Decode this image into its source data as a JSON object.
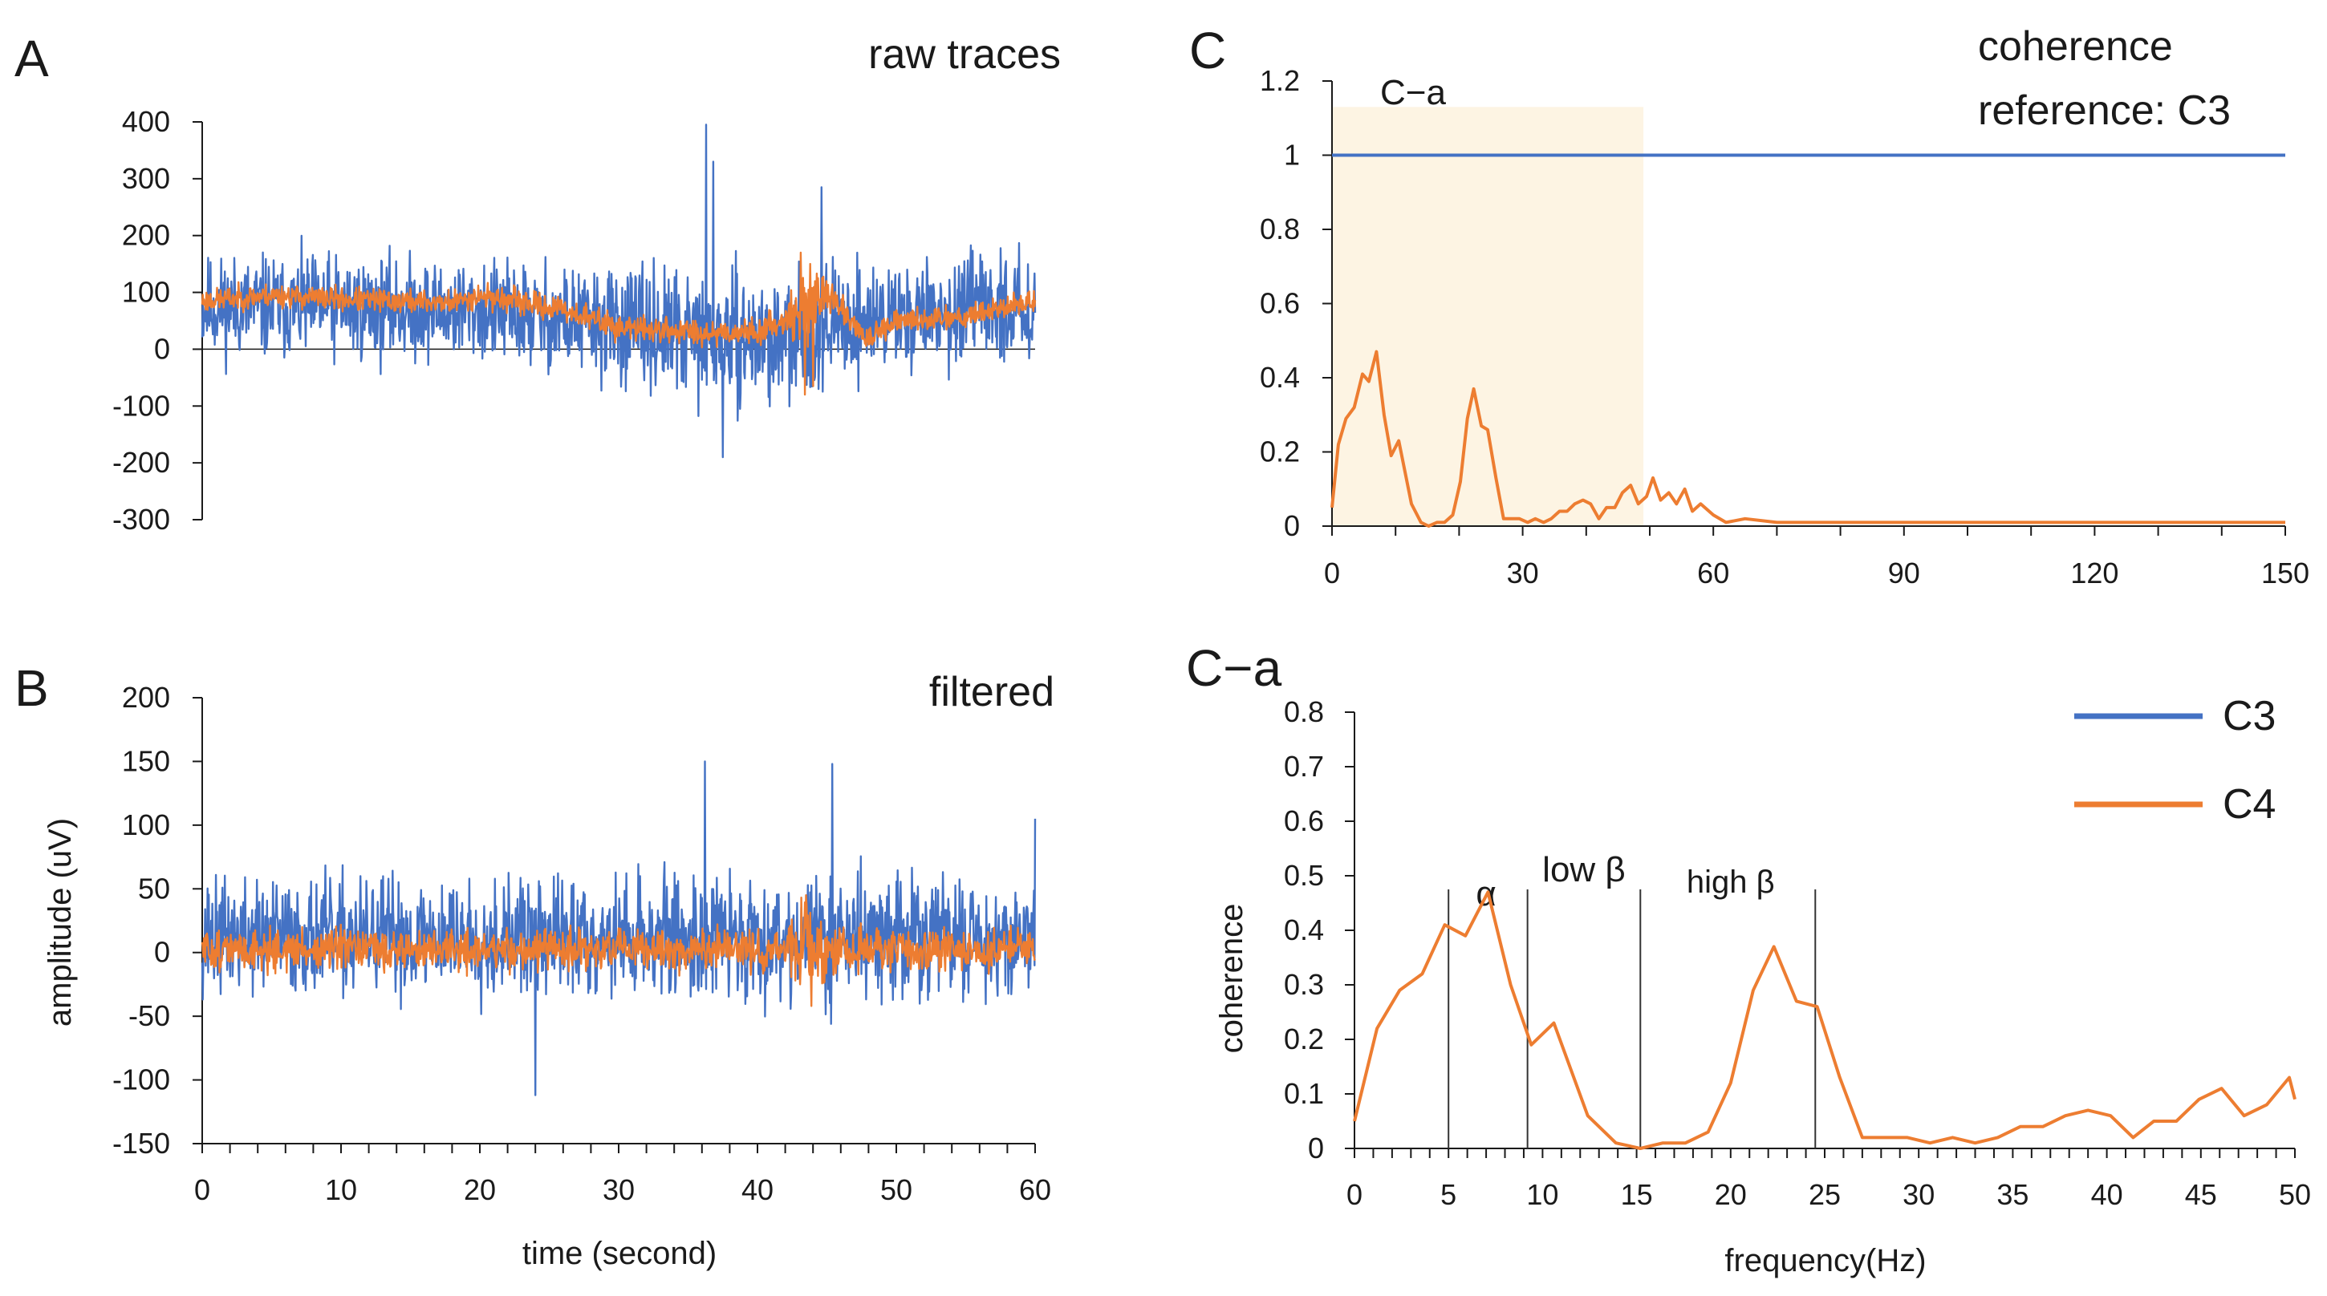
{
  "colors": {
    "c3": "#4472C4",
    "c4": "#ED7D31",
    "shade": "#FDF4E3",
    "axis": "#1a1a1a",
    "band_line": "#333333"
  },
  "legend": {
    "c3": "C3",
    "c4": "C4"
  },
  "chart_data": [
    {
      "id": "A",
      "panel_label": "A",
      "type": "line",
      "title": "raw traces",
      "xlabel": "",
      "ylabel": "",
      "xlim": [
        0,
        60
      ],
      "ylim": [
        -300,
        400
      ],
      "xticks": [],
      "yticks": [
        -300,
        -200,
        -100,
        0,
        100,
        200,
        300,
        400
      ],
      "series": [
        {
          "name": "C3",
          "color": "#4472C4",
          "style": "noise",
          "x_range": [
            0,
            60
          ],
          "samples": 1400,
          "seed": 11,
          "baseline": [
            [
              0,
              75
            ],
            [
              10,
              72
            ],
            [
              20,
              68
            ],
            [
              30,
              40
            ],
            [
              36,
              20
            ],
            [
              42,
              15
            ],
            [
              45,
              40
            ],
            [
              50,
              60
            ],
            [
              60,
              75
            ]
          ],
          "amplitude": [
            [
              0,
              95
            ],
            [
              10,
              100
            ],
            [
              20,
              95
            ],
            [
              30,
              110
            ],
            [
              36,
              120
            ],
            [
              42,
              115
            ],
            [
              50,
              100
            ],
            [
              60,
              95
            ]
          ],
          "spikes": [
            [
              36.3,
              395
            ],
            [
              36.8,
              330
            ],
            [
              37.5,
              -190
            ],
            [
              44.6,
              285
            ]
          ]
        },
        {
          "name": "C4",
          "color": "#ED7D31",
          "style": "noise",
          "x_range": [
            0,
            60
          ],
          "samples": 1400,
          "seed": 23,
          "baseline": [
            [
              0,
              85
            ],
            [
              5,
              95
            ],
            [
              10,
              88
            ],
            [
              18,
              82
            ],
            [
              20,
              95
            ],
            [
              26,
              70
            ],
            [
              30,
              38
            ],
            [
              36,
              30
            ],
            [
              40,
              30
            ],
            [
              42.5,
              60
            ],
            [
              43,
              60
            ],
            [
              45,
              100
            ],
            [
              48,
              15
            ],
            [
              50,
              48
            ],
            [
              55,
              60
            ],
            [
              60,
              85
            ]
          ],
          "amplitude": [
            [
              0,
              22
            ],
            [
              42,
              25
            ],
            [
              43,
              70
            ],
            [
              44,
              60
            ],
            [
              45,
              25
            ],
            [
              60,
              22
            ]
          ],
          "spikes": [
            [
              43.1,
              170
            ],
            [
              43.4,
              -80
            ],
            [
              43.8,
              150
            ],
            [
              44.0,
              -65
            ]
          ]
        }
      ]
    },
    {
      "id": "B",
      "panel_label": "B",
      "type": "line",
      "title": "filtered",
      "xlabel": "time (second)",
      "ylabel": "amplitude (uV)",
      "xlim": [
        0,
        60
      ],
      "ylim": [
        -150,
        200
      ],
      "xticks": [
        0,
        10,
        20,
        30,
        40,
        50,
        60
      ],
      "yticks": [
        -150,
        -100,
        -50,
        0,
        50,
        100,
        150,
        200
      ],
      "series": [
        {
          "name": "C3",
          "color": "#4472C4",
          "style": "noise",
          "x_range": [
            0,
            60
          ],
          "samples": 1400,
          "seed": 37,
          "baseline": [
            [
              0,
              12
            ],
            [
              60,
              12
            ]
          ],
          "amplitude": [
            [
              0,
              48
            ],
            [
              30,
              50
            ],
            [
              45,
              55
            ],
            [
              60,
              50
            ]
          ],
          "spikes": [
            [
              36.2,
              150
            ],
            [
              45.4,
              148
            ],
            [
              24.0,
              -112
            ],
            [
              60.0,
              105
            ]
          ]
        },
        {
          "name": "C4",
          "color": "#ED7D31",
          "style": "noise",
          "x_range": [
            0,
            60
          ],
          "samples": 1400,
          "seed": 51,
          "baseline": [
            [
              0,
              2
            ],
            [
              60,
              2
            ]
          ],
          "amplitude": [
            [
              0,
              17
            ],
            [
              42,
              18
            ],
            [
              43,
              35
            ],
            [
              44.5,
              35
            ],
            [
              45,
              18
            ],
            [
              60,
              17
            ]
          ],
          "spikes": [
            [
              43.5,
              45
            ],
            [
              43.9,
              -42
            ]
          ]
        }
      ]
    },
    {
      "id": "C",
      "panel_label": "C",
      "type": "line",
      "title": "coherence\nreference: C3",
      "title_lines": [
        "coherence",
        "reference: C3"
      ],
      "xlabel": "",
      "ylabel": "",
      "xlim": [
        0,
        150
      ],
      "ylim": [
        0,
        1.2
      ],
      "xticks": [
        0,
        30,
        60,
        90,
        120,
        150
      ],
      "yticks": [
        0,
        0.2,
        0.4,
        0.6,
        0.8,
        1,
        1.2
      ],
      "highlight": {
        "x": [
          0,
          49
        ],
        "ymax": 1.13,
        "label": "C−a"
      },
      "series": [
        {
          "name": "C3",
          "color": "#4472C4",
          "style": "line",
          "x": [
            0,
            150
          ],
          "y": [
            1,
            1
          ]
        },
        {
          "name": "C4",
          "color": "#ED7D31",
          "style": "line",
          "x": [
            0,
            1,
            2.2,
            3.5,
            4.8,
            5.8,
            7,
            8.2,
            9.3,
            10.5,
            12.5,
            14,
            15.2,
            16.5,
            17.7,
            19,
            20.2,
            21.3,
            22.3,
            23.5,
            24.5,
            25.8,
            27,
            28.3,
            29.5,
            30.8,
            32,
            33.3,
            34.5,
            35.8,
            37,
            38.2,
            39.5,
            40.7,
            42,
            43.2,
            44.5,
            45.7,
            47,
            48.2,
            49.5,
            50.5,
            51.7,
            53,
            54.2,
            55.5,
            56.7,
            58,
            60,
            62,
            65,
            70,
            75,
            80,
            85,
            90,
            95,
            100,
            105,
            110,
            115,
            120,
            125,
            130,
            135,
            140,
            145,
            150
          ],
          "y": [
            0.05,
            0.22,
            0.29,
            0.32,
            0.41,
            0.39,
            0.47,
            0.3,
            0.19,
            0.23,
            0.06,
            0.01,
            0.0,
            0.01,
            0.01,
            0.03,
            0.12,
            0.29,
            0.37,
            0.27,
            0.26,
            0.13,
            0.02,
            0.02,
            0.02,
            0.01,
            0.02,
            0.01,
            0.02,
            0.04,
            0.04,
            0.06,
            0.07,
            0.06,
            0.02,
            0.05,
            0.05,
            0.09,
            0.11,
            0.06,
            0.08,
            0.13,
            0.07,
            0.09,
            0.06,
            0.1,
            0.04,
            0.06,
            0.03,
            0.01,
            0.02,
            0.01,
            0.01,
            0.01,
            0.01,
            0.01,
            0.01,
            0.01,
            0.01,
            0.01,
            0.01,
            0.01,
            0.01,
            0.01,
            0.01,
            0.01,
            0.01,
            0.01
          ]
        }
      ]
    },
    {
      "id": "C-a",
      "panel_label": "C−a",
      "type": "line",
      "title": "",
      "xlabel": "frequency(Hz)",
      "ylabel": "coherence",
      "xlim": [
        0,
        50
      ],
      "ylim": [
        0,
        0.8
      ],
      "xticks": [
        0,
        5,
        10,
        15,
        20,
        25,
        30,
        35,
        40,
        45,
        50
      ],
      "yticks": [
        0,
        0.1,
        0.2,
        0.3,
        0.4,
        0.5,
        0.6,
        0.7,
        0.8
      ],
      "band_lines": [
        5,
        9.2,
        15.2,
        24.5
      ],
      "band_labels": [
        {
          "text": "α",
          "x": 7
        },
        {
          "text": "low β",
          "x": 12.2
        },
        {
          "text": "high β",
          "x": 20.0
        }
      ],
      "series": [
        {
          "name": "C4",
          "color": "#ED7D31",
          "style": "line",
          "x": [
            0,
            1.2,
            2.4,
            3.6,
            4.8,
            5.9,
            7.1,
            8.3,
            9.4,
            10.6,
            12.4,
            13.9,
            15.2,
            16.4,
            17.6,
            18.8,
            20.0,
            21.2,
            22.3,
            23.5,
            24.6,
            25.8,
            27.0,
            28.2,
            29.4,
            30.6,
            31.8,
            33.0,
            34.2,
            35.4,
            36.6,
            37.8,
            39.0,
            40.2,
            41.4,
            42.5,
            43.7,
            44.9,
            46.1,
            47.3,
            48.5,
            49.7,
            50.0
          ],
          "y": [
            0.05,
            0.22,
            0.29,
            0.32,
            0.41,
            0.39,
            0.47,
            0.3,
            0.19,
            0.23,
            0.06,
            0.01,
            0.0,
            0.01,
            0.01,
            0.03,
            0.12,
            0.29,
            0.37,
            0.27,
            0.26,
            0.13,
            0.02,
            0.02,
            0.02,
            0.01,
            0.02,
            0.01,
            0.02,
            0.04,
            0.04,
            0.06,
            0.07,
            0.06,
            0.02,
            0.05,
            0.05,
            0.09,
            0.11,
            0.06,
            0.08,
            0.13,
            0.09
          ]
        }
      ]
    }
  ]
}
